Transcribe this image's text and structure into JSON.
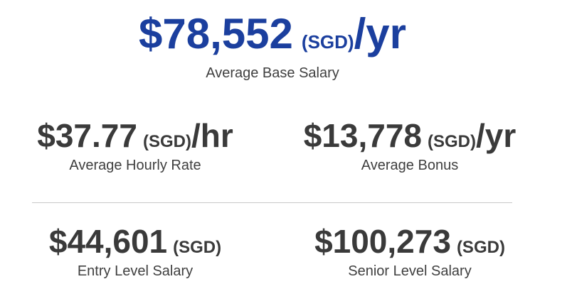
{
  "primary": {
    "amount": "$78,552",
    "currency": "(SGD)",
    "unit": "/yr",
    "label": "Average Base Salary"
  },
  "stats": [
    {
      "amount": "$37.77",
      "currency": "(SGD)",
      "unit": "/hr",
      "label": "Average Hourly Rate"
    },
    {
      "amount": "$13,778",
      "currency": "(SGD)",
      "unit": "/yr",
      "label": "Average Bonus"
    },
    {
      "amount": "$44,601",
      "currency": "(SGD)",
      "label": "Entry Level Salary"
    },
    {
      "amount": "$100,273",
      "currency": "(SGD)",
      "label": "Senior Level Salary"
    }
  ]
}
